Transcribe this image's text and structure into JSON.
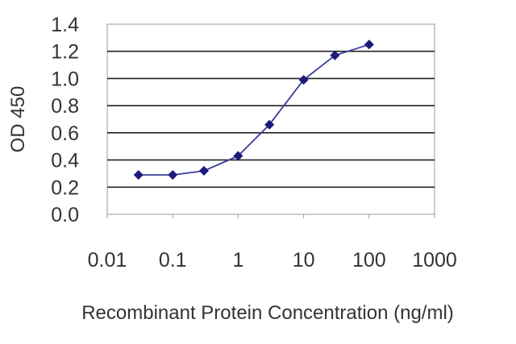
{
  "chart_data": {
    "type": "line",
    "title": "",
    "xlabel": "Recombinant Protein Concentration (ng/ml)",
    "ylabel": "OD 450",
    "x_scale": "log",
    "xlim": [
      0.01,
      1000
    ],
    "ylim": [
      0.0,
      1.4
    ],
    "x_ticks": [
      "0.01",
      "0.1",
      "1",
      "10",
      "100",
      "1000"
    ],
    "y_ticks": [
      "0.0",
      "0.2",
      "0.4",
      "0.6",
      "0.8",
      "1.0",
      "1.2",
      "1.4"
    ],
    "grid": "horizontal",
    "series": [
      {
        "x": [
          0.03,
          0.1,
          0.3,
          1,
          3,
          10,
          30,
          100
        ],
        "y": [
          0.29,
          0.29,
          0.32,
          0.43,
          0.66,
          0.99,
          1.17,
          1.25
        ]
      }
    ],
    "colors": {
      "line": "#3a3a9e",
      "marker": "#1b1b7a",
      "grid": "#222222",
      "axis": "#999999"
    }
  }
}
